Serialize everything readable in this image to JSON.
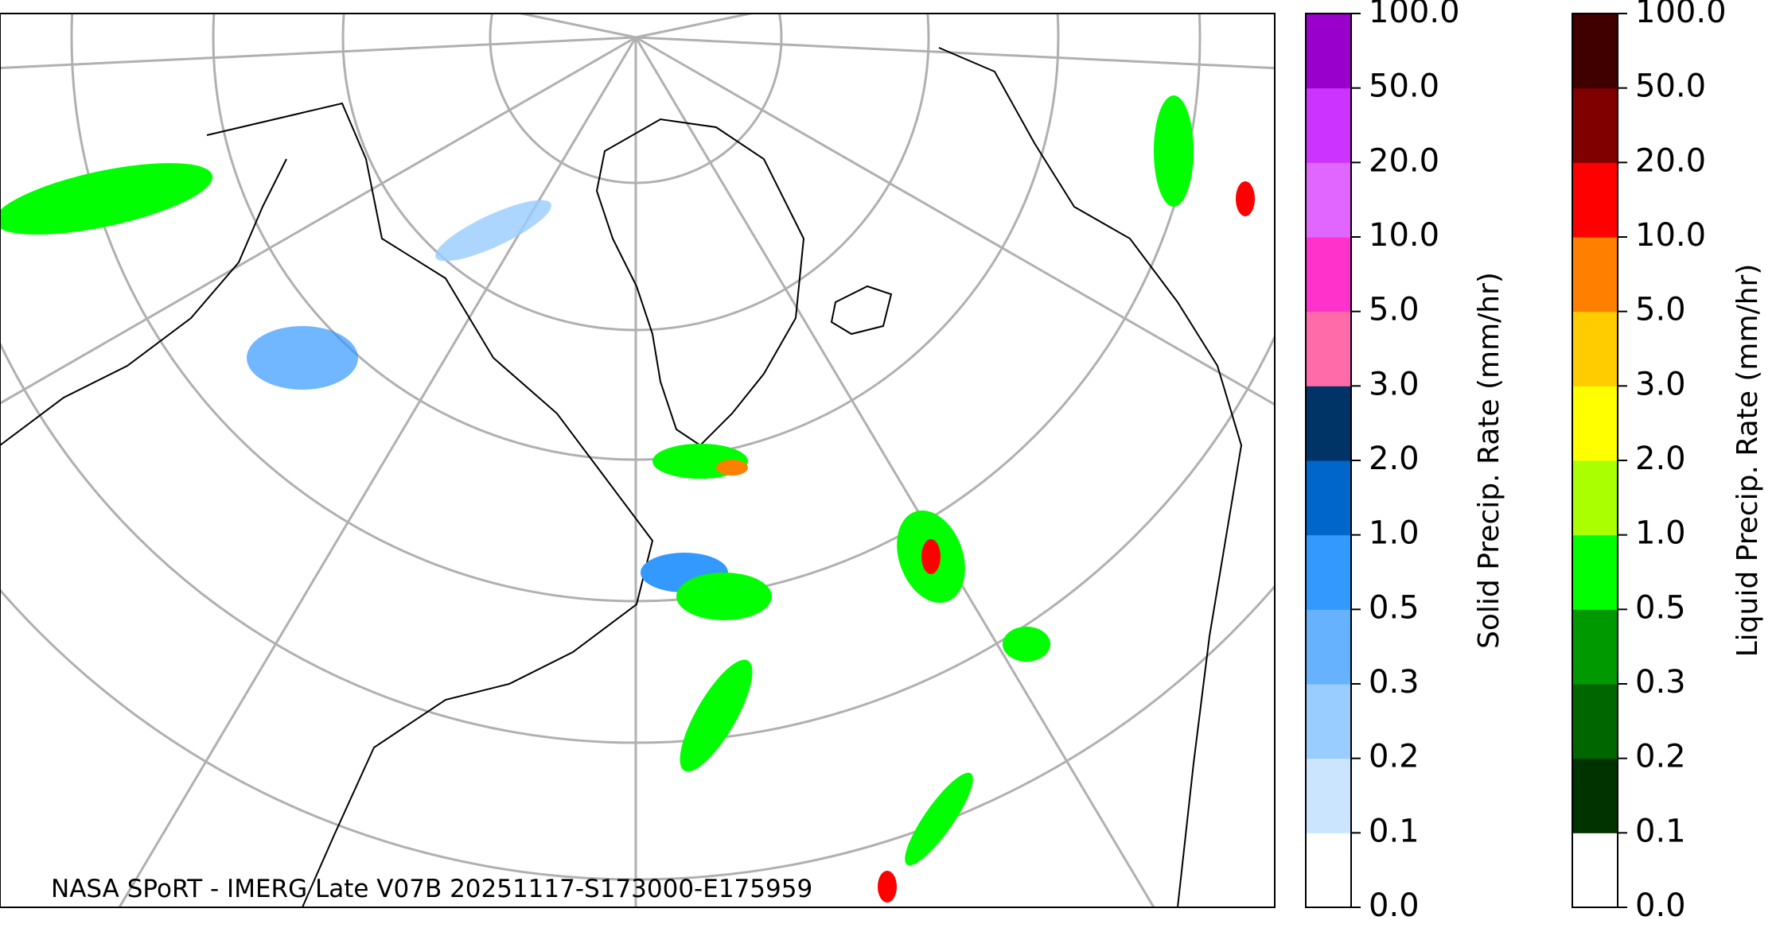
{
  "map": {
    "caption": "NASA SPoRT - IMERG Late V07B 20251117-S173000-E175959"
  },
  "colorbars": [
    {
      "label": "Solid Precip. Rate (mm/hr)",
      "ticks": [
        "0.0",
        "0.1",
        "0.2",
        "0.3",
        "0.5",
        "1.0",
        "2.0",
        "3.0",
        "5.0",
        "10.0",
        "20.0",
        "50.0",
        "100.0"
      ],
      "colors": [
        "#ffffff",
        "#cce5ff",
        "#99ccff",
        "#66b2ff",
        "#3399ff",
        "#0066cc",
        "#003366",
        "#ff6aa8",
        "#ff33cc",
        "#e066ff",
        "#cc33ff",
        "#9900cc"
      ]
    },
    {
      "label": "Liquid Precip. Rate (mm/hr)",
      "ticks": [
        "0.0",
        "0.1",
        "0.2",
        "0.3",
        "0.5",
        "1.0",
        "2.0",
        "3.0",
        "5.0",
        "10.0",
        "20.0",
        "50.0",
        "100.0"
      ],
      "colors": [
        "#ffffff",
        "#003300",
        "#006600",
        "#009900",
        "#00ff00",
        "#aaff00",
        "#ffff00",
        "#ffcc00",
        "#ff8000",
        "#ff0000",
        "#800000",
        "#400000"
      ]
    }
  ]
}
